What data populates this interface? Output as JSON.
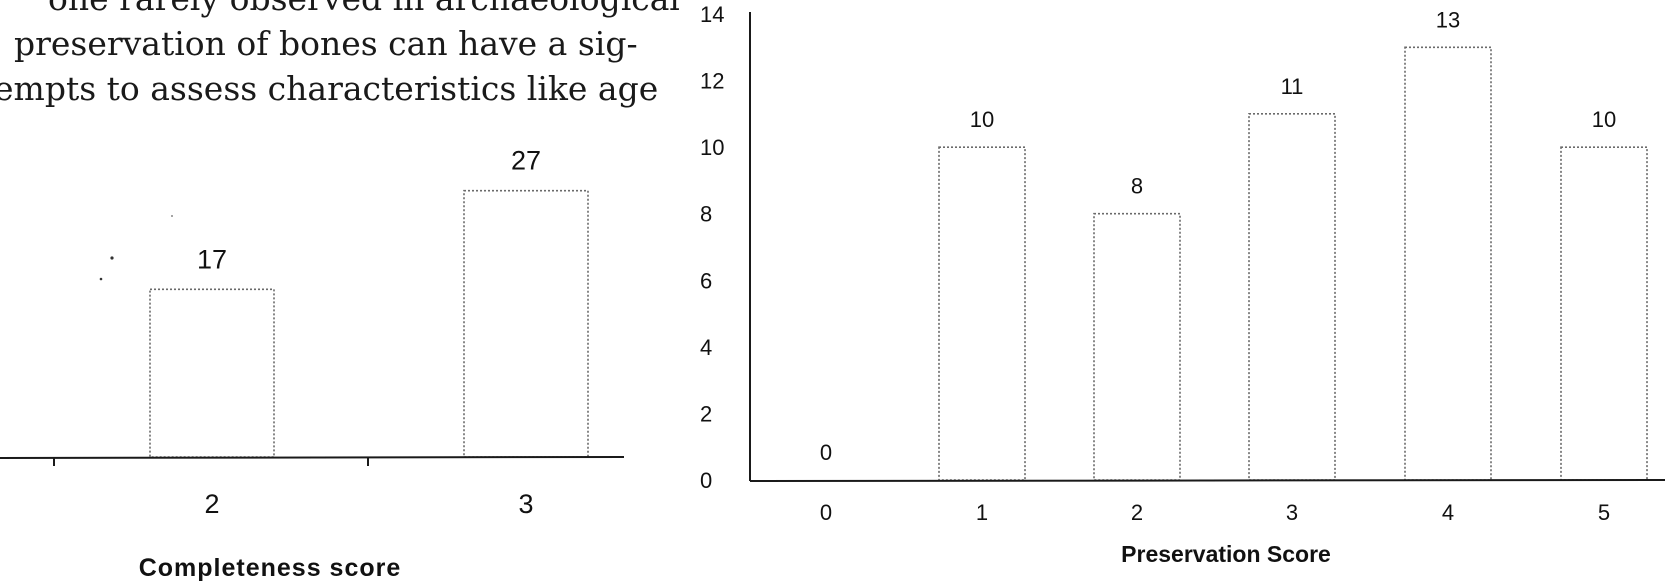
{
  "text_fragment": {
    "lines": [
      "one rarely observed in archaeological",
      "preservation of bones can have a sig-",
      "empts to assess characteristics like age"
    ]
  },
  "chart_data": [
    {
      "type": "bar",
      "categories": [
        "2",
        "3"
      ],
      "values": [
        17,
        27
      ],
      "data_labels": [
        "17",
        "27"
      ],
      "xlabel": "Completeness score",
      "ylabel": "",
      "ylim": [
        0,
        29
      ],
      "grid": false,
      "legend": "none",
      "bar_style": "white fill, dotted grey outline"
    },
    {
      "type": "bar",
      "categories": [
        "0",
        "1",
        "2",
        "3",
        "4",
        "5"
      ],
      "values": [
        0,
        10,
        8,
        11,
        13,
        10
      ],
      "data_labels": [
        "0",
        "10",
        "8",
        "11",
        "13",
        "10"
      ],
      "xlabel": "Preservation Score",
      "ylabel": "",
      "ylim": [
        0,
        14
      ],
      "yticks": [
        "0",
        "2",
        "4",
        "6",
        "8",
        "10",
        "12",
        "14"
      ],
      "grid": false,
      "legend": "none",
      "bar_style": "white fill, dotted grey outline"
    }
  ]
}
